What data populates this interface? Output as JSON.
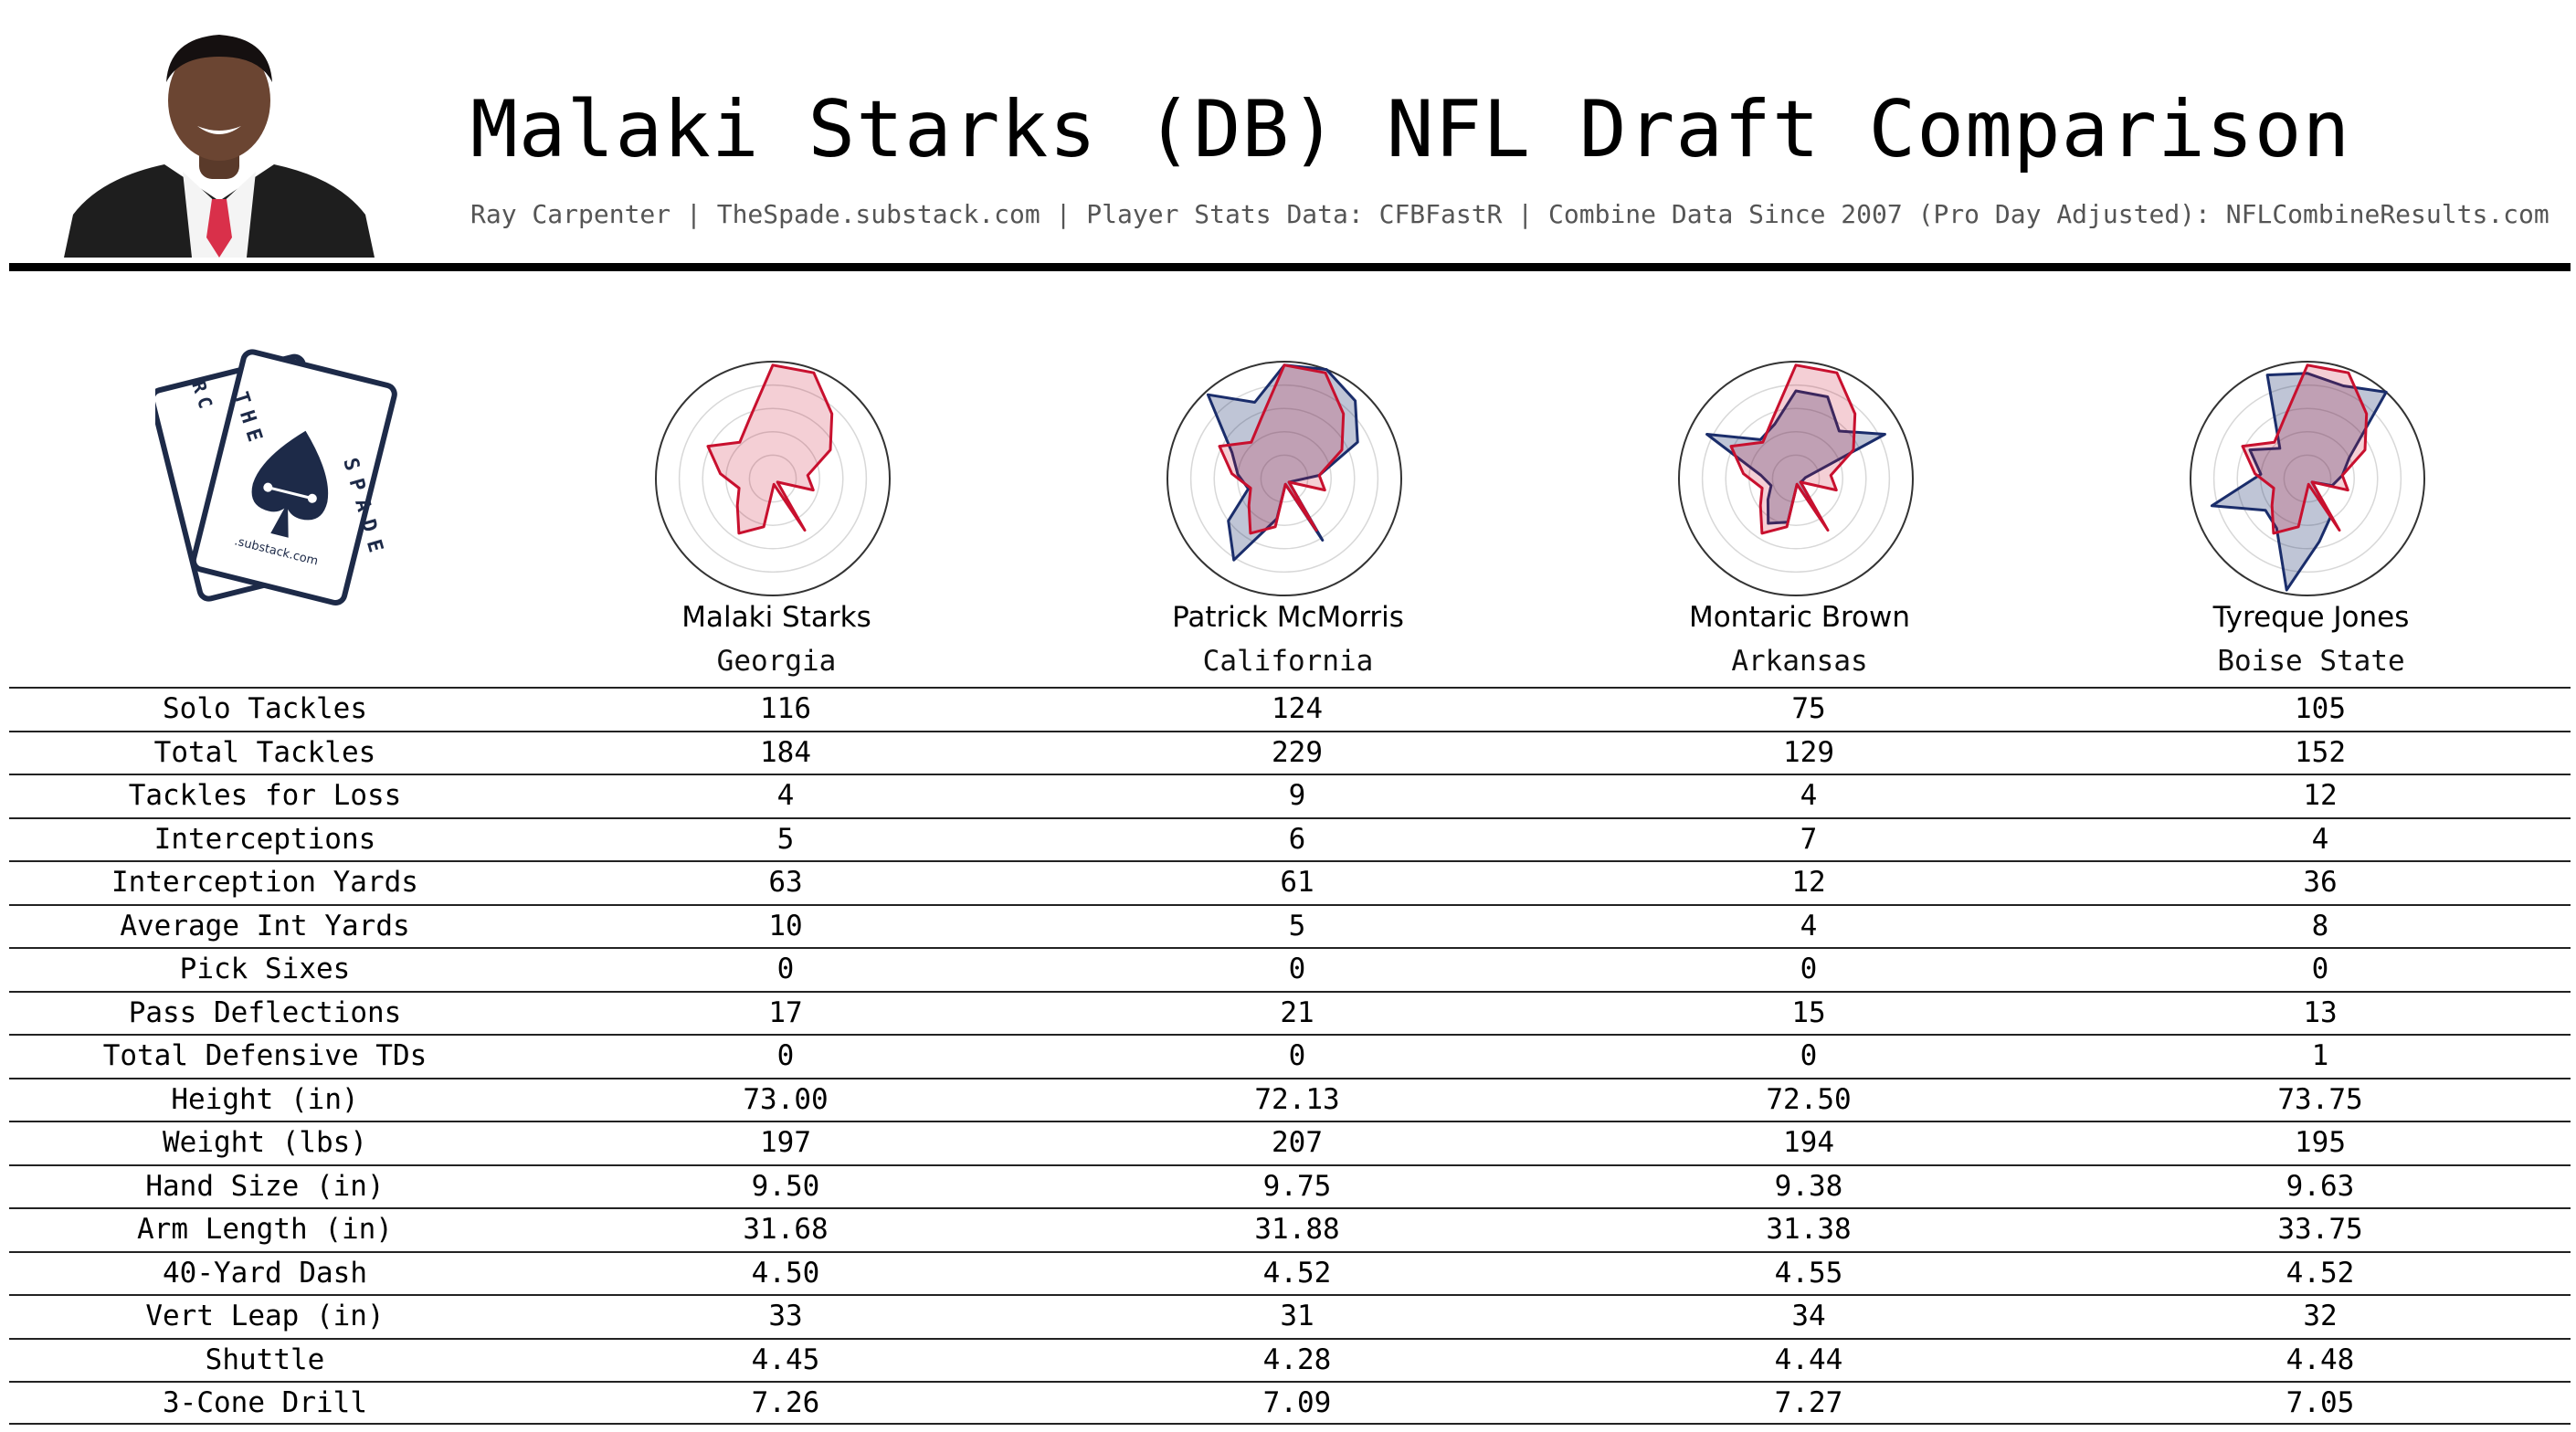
{
  "header": {
    "title": "Malaki Starks (DB) NFL Draft Comparison",
    "subtitle": "Ray Carpenter | TheSpade.substack.com | Player Stats Data: CFBFastR | Combine Data Since 2007 (Pro Day Adjusted): NFLCombineResults.com"
  },
  "logo": {
    "text_top": "THE",
    "text_left": "RC",
    "text_right": "SPADE",
    "text_bottom": ".substack.com"
  },
  "colors": {
    "primary": "#c8102e",
    "comparison": "#1a2d6b",
    "rule": "#000000"
  },
  "players": [
    {
      "name": "Malaki Starks",
      "school": "Georgia"
    },
    {
      "name": "Patrick McMorris",
      "school": "California"
    },
    {
      "name": "Montaric Brown",
      "school": "Arkansas"
    },
    {
      "name": "Tyreque Jones",
      "school": "Boise State"
    }
  ],
  "chart_data": {
    "type": "table",
    "columns": [
      "Malaki Starks",
      "Patrick McMorris",
      "Montaric Brown",
      "Tyreque Jones"
    ],
    "rows": [
      {
        "label": "Solo Tackles",
        "values": [
          "116",
          "124",
          "75",
          "105"
        ]
      },
      {
        "label": "Total Tackles",
        "values": [
          "184",
          "229",
          "129",
          "152"
        ]
      },
      {
        "label": "Tackles for Loss",
        "values": [
          "4",
          "9",
          "4",
          "12"
        ]
      },
      {
        "label": "Interceptions",
        "values": [
          "5",
          "6",
          "7",
          "4"
        ]
      },
      {
        "label": "Interception Yards",
        "values": [
          "63",
          "61",
          "12",
          "36"
        ]
      },
      {
        "label": "Average Int Yards",
        "values": [
          "10",
          "5",
          "4",
          "8"
        ]
      },
      {
        "label": "Pick Sixes",
        "values": [
          "0",
          "0",
          "0",
          "0"
        ]
      },
      {
        "label": "Pass Deflections",
        "values": [
          "17",
          "21",
          "15",
          "13"
        ]
      },
      {
        "label": "Total Defensive TDs",
        "values": [
          "0",
          "0",
          "0",
          "1"
        ]
      },
      {
        "label": "Height (in)",
        "values": [
          "73.00",
          "72.13",
          "72.50",
          "73.75"
        ]
      },
      {
        "label": "Weight (lbs)",
        "values": [
          "197",
          "207",
          "194",
          "195"
        ]
      },
      {
        "label": "Hand Size (in)",
        "values": [
          "9.50",
          "9.75",
          "9.38",
          "9.63"
        ]
      },
      {
        "label": "Arm Length (in)",
        "values": [
          "31.68",
          "31.88",
          "31.38",
          "33.75"
        ]
      },
      {
        "label": "40-Yard Dash",
        "values": [
          "4.50",
          "4.52",
          "4.55",
          "4.52"
        ]
      },
      {
        "label": "Vert Leap (in)",
        "values": [
          "33",
          "31",
          "34",
          "32"
        ]
      },
      {
        "label": "Shuttle",
        "values": [
          "4.45",
          "4.28",
          "4.44",
          "4.48"
        ]
      },
      {
        "label": "3-Cone Drill",
        "values": [
          "7.26",
          "7.09",
          "7.27",
          "7.05"
        ]
      }
    ],
    "radar": {
      "type": "radar",
      "rings": 5,
      "scale": [
        0,
        1
      ],
      "primary": [
        0.97,
        0.97,
        0.75,
        0.55,
        0.3,
        0.36,
        0.05,
        0.52,
        0.05,
        0.42,
        0.55,
        0.38,
        0.3,
        0.45,
        0.62,
        0.42,
        0.55
      ],
      "comparisons": [
        [
          0.97,
          1.0,
          0.9,
          0.7,
          0.3,
          0.08,
          0.05,
          0.62,
          0.05,
          0.35,
          0.82,
          0.6,
          0.32,
          0.4,
          0.5,
          0.97,
          0.7
        ],
        [
          0.75,
          0.75,
          0.55,
          0.85,
          0.08,
          0.06,
          0.05,
          0.45,
          0.05,
          0.38,
          0.45,
          0.3,
          0.22,
          0.3,
          0.85,
          0.45,
          0.5
        ],
        [
          0.9,
          0.85,
          1.0,
          0.4,
          0.3,
          0.22,
          0.05,
          0.38,
          0.55,
          0.97,
          0.5,
          0.45,
          0.85,
          0.4,
          0.55,
          0.35,
          0.95
        ]
      ]
    }
  }
}
